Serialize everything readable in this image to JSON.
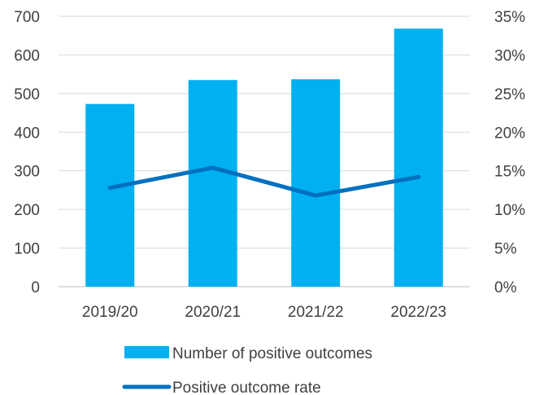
{
  "chart_data": {
    "type": "bar",
    "categories": [
      "2019/20",
      "2020/21",
      "2021/22",
      "2022/23"
    ],
    "series": [
      {
        "name": "Number of positive outcomes",
        "type": "bar",
        "axis": "left",
        "values": [
          473,
          535,
          537,
          668
        ],
        "color": "#00B0F0"
      },
      {
        "name": "Positive outcome rate",
        "type": "line",
        "axis": "right",
        "values": [
          12.8,
          15.4,
          11.8,
          14.2
        ],
        "color": "#0070C0"
      }
    ],
    "y_left": {
      "min": 0,
      "max": 700,
      "step": 100,
      "ticks": [
        "0",
        "100",
        "200",
        "300",
        "400",
        "500",
        "600",
        "700"
      ]
    },
    "y_right": {
      "min": 0,
      "max": 35,
      "step": 5,
      "ticks": [
        "0%",
        "5%",
        "10%",
        "15%",
        "20%",
        "25%",
        "30%",
        "35%"
      ]
    },
    "grid": true,
    "gridline_color": "#D9D9D9",
    "legend_position": "bottom"
  }
}
